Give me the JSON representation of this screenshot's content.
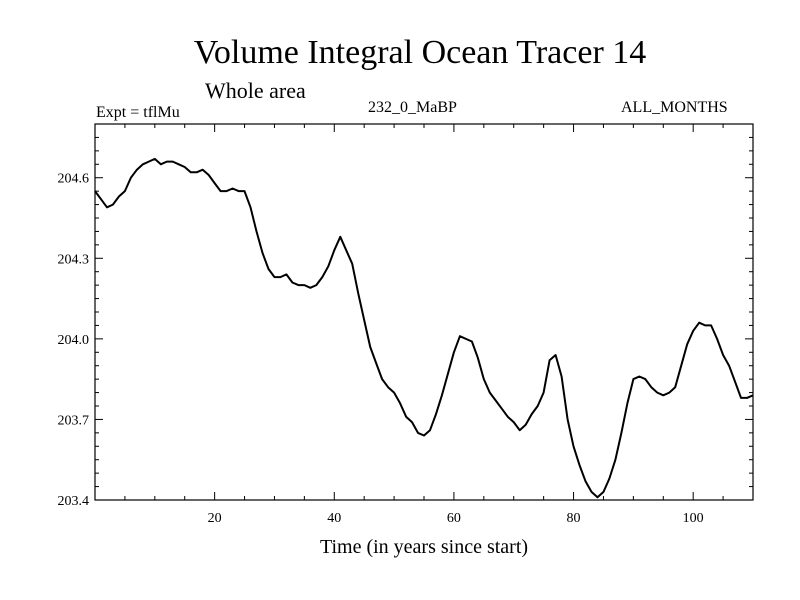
{
  "chart_data": {
    "type": "line",
    "title": "Volume Integral Ocean Tracer 14",
    "subtitle": "Whole area",
    "top_left_label": "Expt = tflMu",
    "top_center_label": "232_0_MaBP",
    "top_right_label": "ALL_MONTHS",
    "xlabel": "Time (in years since start)",
    "ylabel": "",
    "xlim": [
      0,
      110
    ],
    "ylim": [
      203.4,
      204.8
    ],
    "xticks": [
      20,
      40,
      60,
      80,
      100
    ],
    "yticks": [
      203.4,
      203.7,
      204.0,
      204.3,
      204.6
    ],
    "ytick_labels": [
      "203.4",
      "203.7",
      "204.0",
      "204.3",
      "204.6"
    ],
    "grid": false,
    "line_color": "#000000",
    "series": [
      {
        "x": [
          0,
          1,
          2,
          3,
          4,
          5,
          6,
          7,
          8,
          9,
          10,
          11,
          12,
          13,
          14,
          15,
          16,
          17,
          18,
          19,
          20,
          21,
          22,
          23,
          24,
          25,
          26,
          27,
          28,
          29,
          30,
          31,
          32,
          33,
          34,
          35,
          36,
          37,
          38,
          39,
          40,
          41,
          42,
          43,
          44,
          45,
          46,
          47,
          48,
          49,
          50,
          51,
          52,
          53,
          54,
          55,
          56,
          57,
          58,
          59,
          60,
          61,
          62,
          63,
          64,
          65,
          66,
          67,
          68,
          69,
          70,
          71,
          72,
          73,
          74,
          75,
          76,
          77,
          78,
          79,
          80,
          81,
          82,
          83,
          84,
          85,
          86,
          87,
          88,
          89,
          90,
          91,
          92,
          93,
          94,
          95,
          96,
          97,
          98,
          99,
          100,
          101,
          102,
          103,
          104,
          105,
          106,
          107,
          108,
          109,
          110
        ],
        "values": [
          204.55,
          204.52,
          204.49,
          204.5,
          204.53,
          204.55,
          204.6,
          204.63,
          204.65,
          204.66,
          204.67,
          204.65,
          204.66,
          204.66,
          204.65,
          204.64,
          204.62,
          204.62,
          204.63,
          204.61,
          204.58,
          204.55,
          204.55,
          204.56,
          204.55,
          204.55,
          204.49,
          204.4,
          204.32,
          204.26,
          204.23,
          204.23,
          204.24,
          204.21,
          204.2,
          204.2,
          204.19,
          204.2,
          204.23,
          204.27,
          204.33,
          204.38,
          204.33,
          204.28,
          204.17,
          204.07,
          203.97,
          203.91,
          203.85,
          203.82,
          203.8,
          203.76,
          203.71,
          203.69,
          203.65,
          203.64,
          203.66,
          203.72,
          203.79,
          203.87,
          203.95,
          204.01,
          204.0,
          203.99,
          203.93,
          203.85,
          203.8,
          203.77,
          203.74,
          203.71,
          203.69,
          203.66,
          203.68,
          203.72,
          203.75,
          203.8,
          203.92,
          203.94,
          203.86,
          203.7,
          203.6,
          203.53,
          203.47,
          203.43,
          203.41,
          203.43,
          203.48,
          203.55,
          203.65,
          203.76,
          203.85,
          203.86,
          203.85,
          203.82,
          203.8,
          203.79,
          203.8,
          203.82,
          203.9,
          203.98,
          204.03,
          204.06,
          204.05,
          204.05,
          204.0,
          203.94,
          203.9,
          203.84,
          203.78,
          203.78,
          203.79
        ]
      }
    ]
  }
}
